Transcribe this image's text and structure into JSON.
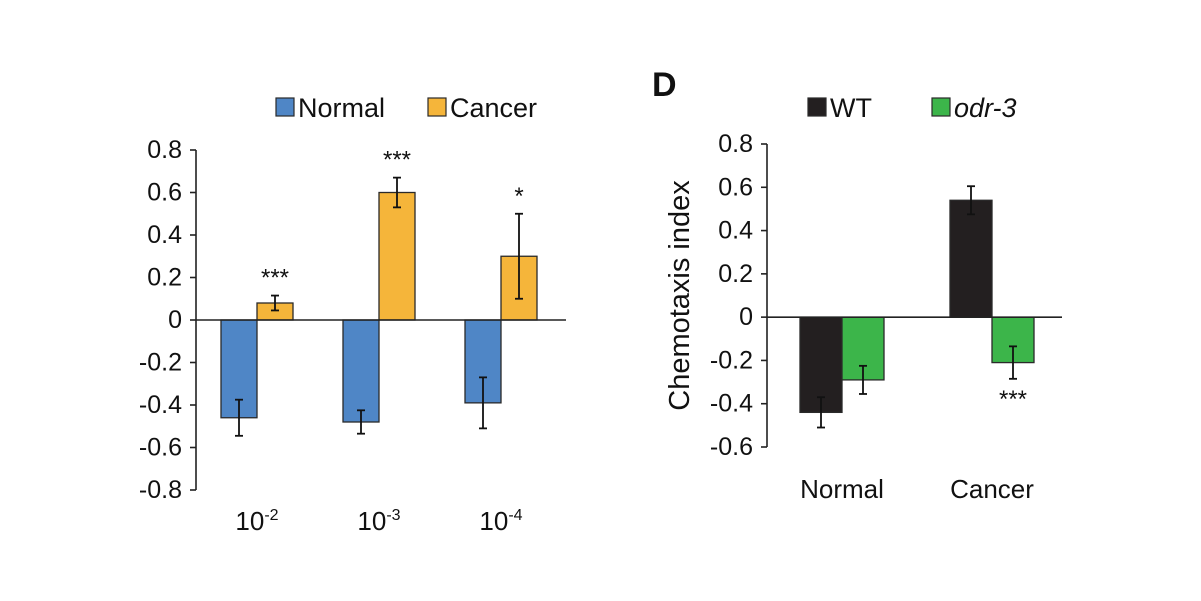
{
  "chart_data": [
    {
      "type": "bar",
      "panel_label": "",
      "title": "",
      "xlabel": "",
      "ylabel": "",
      "ylim": [
        -0.8,
        0.8
      ],
      "yticks": [
        0.8,
        0.6,
        0.4,
        0.2,
        0,
        -0.2,
        -0.4,
        -0.6,
        -0.8
      ],
      "ytick_labels": [
        "0.8",
        "0.6",
        "0.4",
        "0.2",
        "0",
        "-0.2",
        "-0.4",
        "-0.6",
        "-0.8"
      ],
      "categories": [
        {
          "base": "10",
          "exp": "-2"
        },
        {
          "base": "10",
          "exp": "-3"
        },
        {
          "base": "10",
          "exp": "-4"
        }
      ],
      "legend_position": "top",
      "series": [
        {
          "name": "Normal",
          "italic": false,
          "color": "#4f86c6",
          "values": [
            -0.46,
            -0.48,
            -0.39
          ],
          "errors": [
            0.085,
            0.055,
            0.12
          ],
          "annotations": [
            "",
            "",
            ""
          ],
          "annotation_side": "above"
        },
        {
          "name": "Cancer",
          "italic": false,
          "color": "#f5b53a",
          "values": [
            0.08,
            0.6,
            0.3
          ],
          "errors": [
            0.035,
            0.07,
            0.2
          ],
          "annotations": [
            "***",
            "***",
            "*"
          ],
          "annotation_side": "above"
        }
      ]
    },
    {
      "type": "bar",
      "panel_label": "D",
      "title": "",
      "xlabel": "",
      "ylabel": "Chemotaxis index",
      "ylim": [
        -0.6,
        0.8
      ],
      "yticks": [
        0.8,
        0.6,
        0.4,
        0.2,
        0,
        -0.2,
        -0.4,
        -0.6
      ],
      "ytick_labels": [
        "0.8",
        "0.6",
        "0.4",
        "0.2",
        "0",
        "-0.2",
        "-0.4",
        "-0.6"
      ],
      "categories": [
        {
          "base": "Normal",
          "exp": ""
        },
        {
          "base": "Cancer",
          "exp": ""
        }
      ],
      "legend_position": "top",
      "series": [
        {
          "name": "WT",
          "italic": false,
          "color": "#231f20",
          "values": [
            -0.44,
            0.54
          ],
          "errors": [
            0.07,
            0.065
          ],
          "annotations": [
            "",
            ""
          ],
          "annotation_side": "below"
        },
        {
          "name": "odr-3",
          "italic": true,
          "color": "#3cb54a",
          "values": [
            -0.29,
            -0.21
          ],
          "errors": [
            0.065,
            0.075
          ],
          "annotations": [
            "",
            "***"
          ],
          "annotation_side": "below"
        }
      ]
    }
  ]
}
